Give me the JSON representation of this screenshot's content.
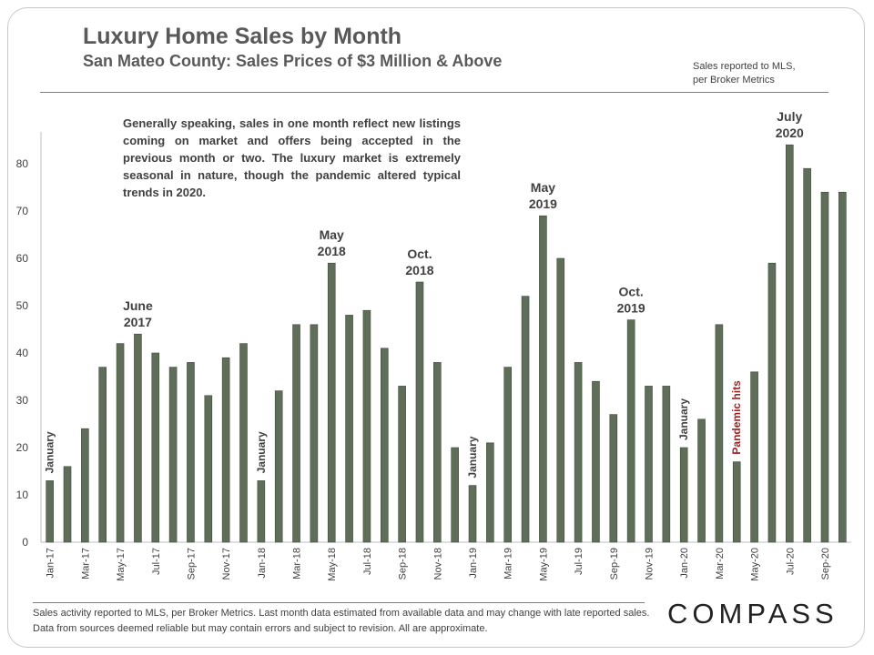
{
  "header": {
    "title": "Luxury Home Sales by Month",
    "subtitle": "San Mateo County: Sales Prices of $3 Million & Above",
    "source_line1": "Sales reported to MLS,",
    "source_line2": "per Broker Metrics"
  },
  "commentary": "Generally speaking, sales in one month reflect new listings coming on market and offers being accepted in the previous month or two. The luxury market is extremely seasonal in nature, though the pandemic altered typical trends in 2020.",
  "footer": {
    "footnote": "Sales activity reported to MLS, per Broker Metrics. Last month data estimated from available data and may change with late reported sales. Data from sources deemed reliable but may contain errors and subject to revision. All are approximate.",
    "brand": "COMPASS"
  },
  "colors": {
    "bar": "#5e6e58",
    "bar_edge": "#3f4b3b",
    "text": "#404040",
    "pandemic_text": "#a41e22"
  },
  "chart_data": {
    "type": "bar",
    "categories": [
      "Jan-17",
      "Feb-17",
      "Mar-17",
      "Apr-17",
      "May-17",
      "Jun-17",
      "Jul-17",
      "Aug-17",
      "Sep-17",
      "Oct-17",
      "Nov-17",
      "Dec-17",
      "Jan-18",
      "Feb-18",
      "Mar-18",
      "Apr-18",
      "May-18",
      "Jun-18",
      "Jul-18",
      "Aug-18",
      "Sep-18",
      "Oct-18",
      "Nov-18",
      "Dec-18",
      "Jan-19",
      "Feb-19",
      "Mar-19",
      "Apr-19",
      "May-19",
      "Jun-19",
      "Jul-19",
      "Aug-19",
      "Sep-19",
      "Oct-19",
      "Nov-19",
      "Dec-19",
      "Jan-20",
      "Feb-20",
      "Mar-20",
      "Apr-20",
      "May-20",
      "Jun-20",
      "Jul-20",
      "Aug-20",
      "Sep-20",
      "Oct-20"
    ],
    "visible_tick_labels": [
      "Jan-17",
      "Mar-17",
      "May-17",
      "Jul-17",
      "Sep-17",
      "Nov-17",
      "Jan-18",
      "Mar-18",
      "May-18",
      "Jul-18",
      "Sep-18",
      "Nov-18",
      "Jan-19",
      "Mar-19",
      "May-19",
      "Jul-19",
      "Sep-19",
      "Nov-19",
      "Jan-20",
      "Mar-20",
      "May-20",
      "Jul-20",
      "Sep-20"
    ],
    "values": [
      13,
      16,
      24,
      37,
      42,
      44,
      40,
      37,
      38,
      31,
      39,
      42,
      13,
      32,
      46,
      46,
      59,
      48,
      49,
      41,
      33,
      55,
      38,
      20,
      12,
      21,
      37,
      52,
      69,
      60,
      38,
      34,
      27,
      47,
      33,
      33,
      20,
      26,
      46,
      17,
      36,
      59,
      84,
      79,
      74,
      74
    ],
    "ylim": [
      0,
      85
    ],
    "yticks": [
      0,
      10,
      20,
      30,
      40,
      50,
      60,
      70,
      80
    ],
    "grid": false,
    "legend": "none",
    "annotations": [
      {
        "index": 0,
        "text": "January",
        "orientation": "vertical"
      },
      {
        "index": 5,
        "lines": [
          "June",
          "2017"
        ],
        "orientation": "horizontal"
      },
      {
        "index": 12,
        "text": "January",
        "orientation": "vertical"
      },
      {
        "index": 16,
        "lines": [
          "May",
          "2018"
        ],
        "orientation": "horizontal"
      },
      {
        "index": 21,
        "lines": [
          "Oct.",
          "2018"
        ],
        "orientation": "horizontal"
      },
      {
        "index": 24,
        "text": "January",
        "orientation": "vertical"
      },
      {
        "index": 28,
        "lines": [
          "May",
          "2019"
        ],
        "orientation": "horizontal"
      },
      {
        "index": 33,
        "lines": [
          "Oct.",
          "2019"
        ],
        "orientation": "horizontal"
      },
      {
        "index": 36,
        "text": "January",
        "orientation": "vertical"
      },
      {
        "index": 39,
        "text": "Pandemic hits",
        "orientation": "vertical",
        "highlight": true
      },
      {
        "index": 42,
        "lines": [
          "July",
          "2020"
        ],
        "orientation": "horizontal"
      }
    ]
  }
}
